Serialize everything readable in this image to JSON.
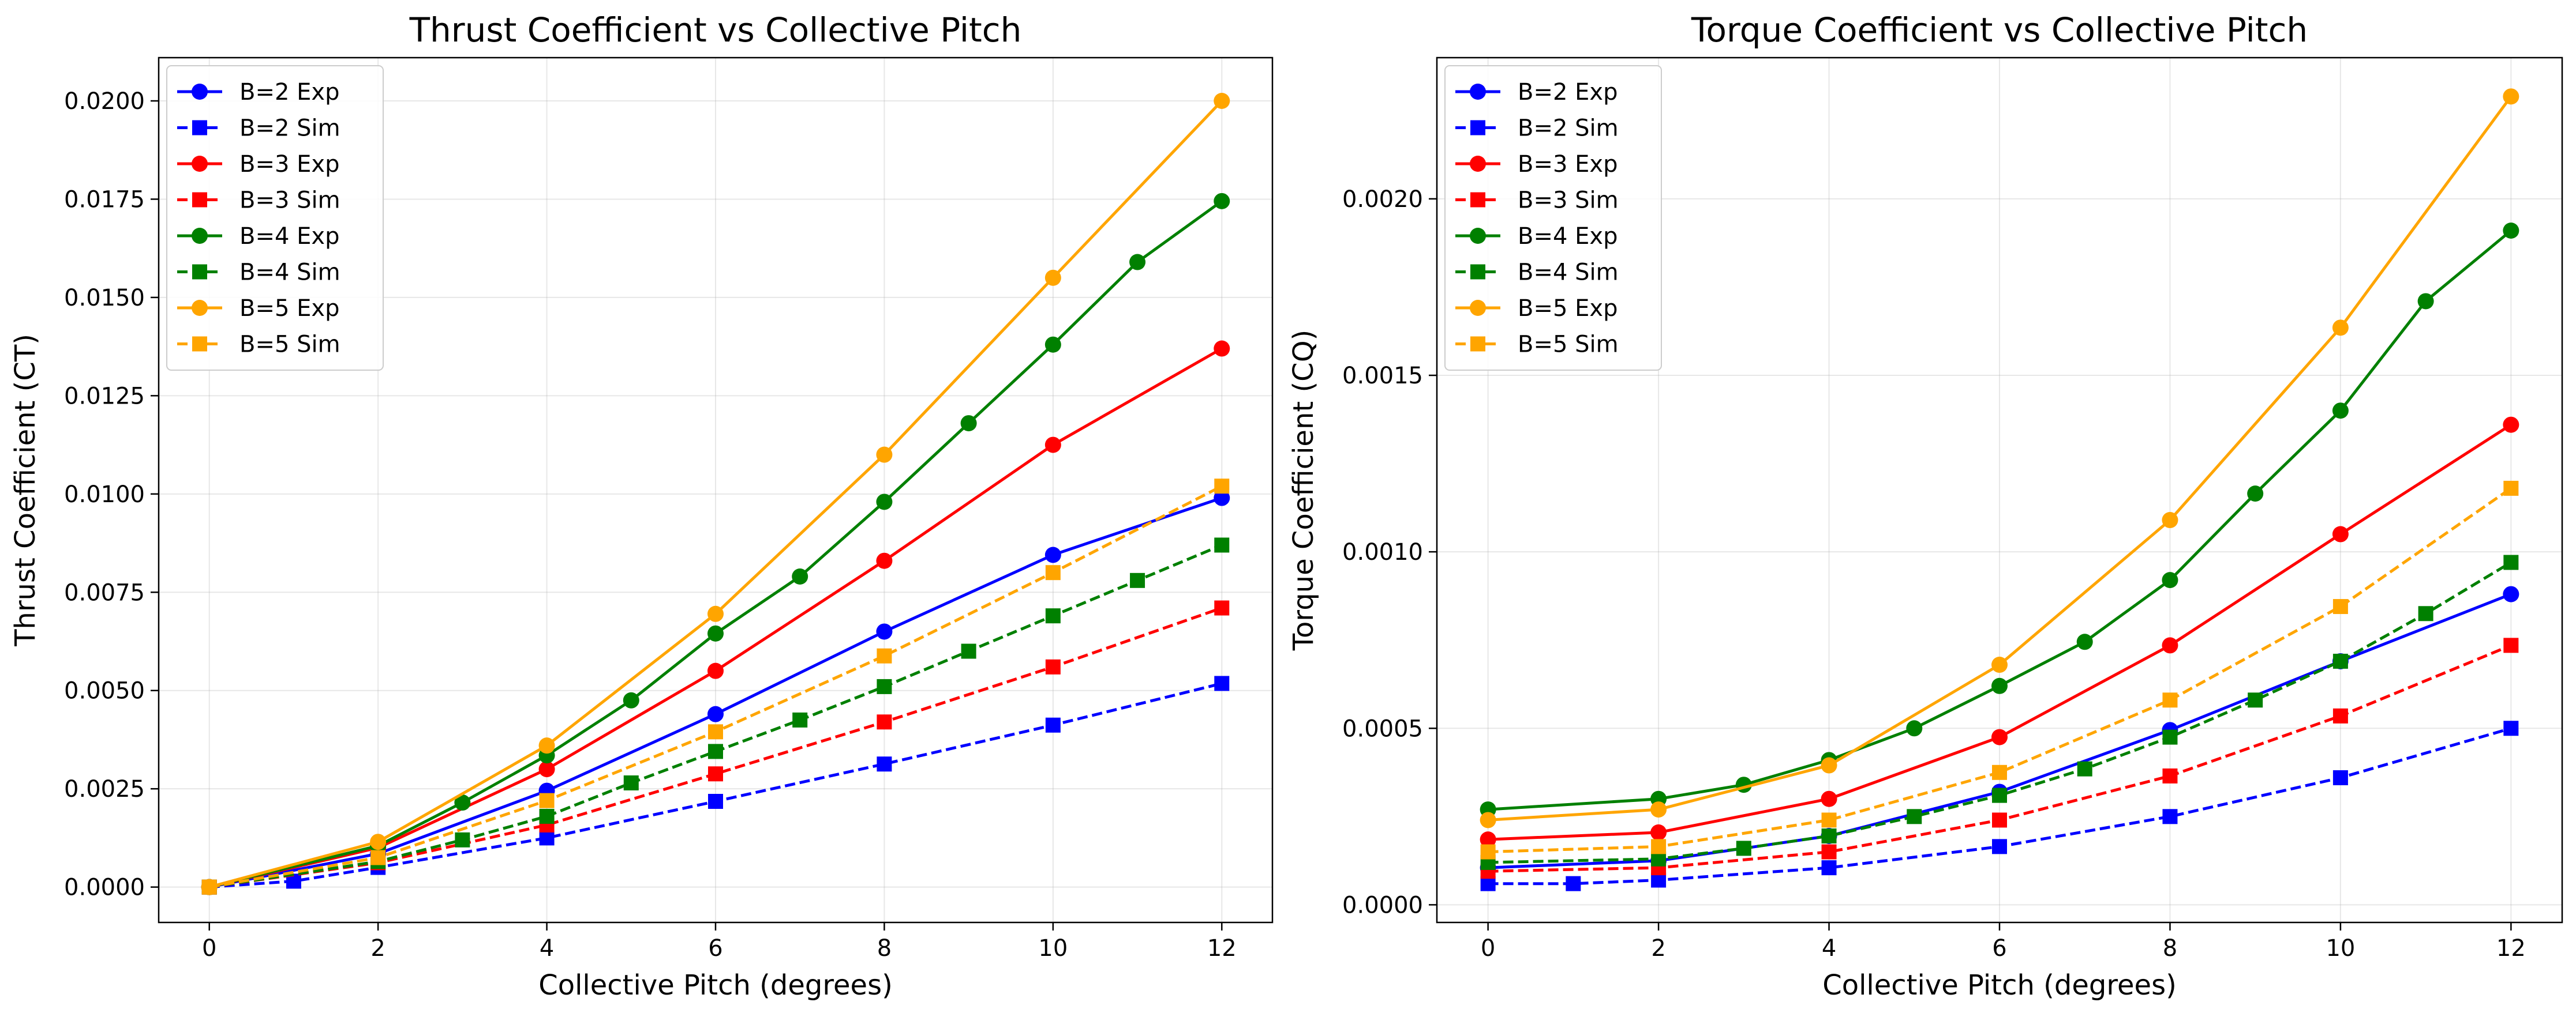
{
  "colors": {
    "B=2": "#0000ff",
    "B=3": "#ff0000",
    "B=4": "#008000",
    "B=5": "#ffa500"
  },
  "chart_data": [
    {
      "type": "line",
      "title": "Thrust Coefficient vs Collective Pitch",
      "xlabel": "Collective Pitch (degrees)",
      "ylabel": "Thrust Coefficient (CT)",
      "xlim": [
        -0.6,
        12.6
      ],
      "ylim": [
        -0.0009,
        0.0211
      ],
      "xticks": [
        0,
        2,
        4,
        6,
        8,
        10,
        12
      ],
      "xtick_labels": [
        "0",
        "2",
        "4",
        "6",
        "8",
        "10",
        "12"
      ],
      "yticks": [
        0,
        0.0025,
        0.005,
        0.0075,
        0.01,
        0.0125,
        0.015,
        0.0175,
        0.02
      ],
      "ytick_labels": [
        "0.0000",
        "0.0025",
        "0.0050",
        "0.0075",
        "0.0100",
        "0.0125",
        "0.0150",
        "0.0175",
        "0.0200"
      ],
      "grid": true,
      "legend_position": "upper-left",
      "series": [
        {
          "name": "B=2 Exp",
          "color": "#0000ff",
          "dashed": false,
          "marker": "circle",
          "x": [
            0,
            2,
            4,
            6,
            8,
            10,
            12
          ],
          "y": [
            0.0,
            0.00085,
            0.00245,
            0.0044,
            0.0065,
            0.00845,
            0.0099
          ]
        },
        {
          "name": "B=2 Sim",
          "color": "#0000ff",
          "dashed": true,
          "marker": "square",
          "x": [
            0,
            1,
            2,
            4,
            6,
            8,
            10,
            12
          ],
          "y": [
            0.0,
            0.00015,
            0.0005,
            0.00125,
            0.00218,
            0.00313,
            0.00412,
            0.00518
          ]
        },
        {
          "name": "B=3 Exp",
          "color": "#ff0000",
          "dashed": false,
          "marker": "circle",
          "x": [
            0,
            2,
            4,
            6,
            8,
            10,
            12
          ],
          "y": [
            0.0,
            0.001,
            0.003,
            0.0055,
            0.0083,
            0.01125,
            0.0137
          ]
        },
        {
          "name": "B=3 Sim",
          "color": "#ff0000",
          "dashed": true,
          "marker": "square",
          "x": [
            0,
            2,
            4,
            6,
            8,
            10,
            12
          ],
          "y": [
            0.0,
            0.00062,
            0.00158,
            0.00288,
            0.0042,
            0.0056,
            0.0071
          ]
        },
        {
          "name": "B=4 Exp",
          "color": "#008000",
          "dashed": false,
          "marker": "circle",
          "x": [
            0,
            2,
            3,
            4,
            5,
            6,
            7,
            8,
            9,
            10,
            11,
            12
          ],
          "y": [
            0.0,
            0.00105,
            0.00215,
            0.00335,
            0.00475,
            0.00645,
            0.0079,
            0.0098,
            0.0118,
            0.0138,
            0.0159,
            0.01745
          ]
        },
        {
          "name": "B=4 Sim",
          "color": "#008000",
          "dashed": true,
          "marker": "square",
          "x": [
            0,
            2,
            3,
            4,
            5,
            6,
            7,
            8,
            9,
            10,
            11,
            12
          ],
          "y": [
            0.0,
            0.00065,
            0.0012,
            0.0018,
            0.00265,
            0.00345,
            0.00425,
            0.0051,
            0.006,
            0.0069,
            0.0078,
            0.0087
          ]
        },
        {
          "name": "B=5 Exp",
          "color": "#ffa500",
          "dashed": false,
          "marker": "circle",
          "x": [
            0,
            2,
            4,
            6,
            8,
            10,
            12
          ],
          "y": [
            0.0,
            0.00115,
            0.0036,
            0.00695,
            0.011,
            0.0155,
            0.02
          ]
        },
        {
          "name": "B=5 Sim",
          "color": "#ffa500",
          "dashed": true,
          "marker": "square",
          "x": [
            0,
            2,
            4,
            6,
            8,
            10,
            12
          ],
          "y": [
            0.0,
            0.00075,
            0.0022,
            0.00395,
            0.00588,
            0.008,
            0.0102
          ]
        }
      ]
    },
    {
      "type": "line",
      "title": "Torque Coefficient vs Collective Pitch",
      "xlabel": "Collective Pitch (degrees)",
      "ylabel": "Torque Coefficient (CQ)",
      "xlim": [
        -0.6,
        12.6
      ],
      "ylim": [
        -5e-05,
        0.0024
      ],
      "xticks": [
        0,
        2,
        4,
        6,
        8,
        10,
        12
      ],
      "xtick_labels": [
        "0",
        "2",
        "4",
        "6",
        "8",
        "10",
        "12"
      ],
      "yticks": [
        0,
        0.0005,
        0.001,
        0.0015,
        0.002
      ],
      "ytick_labels": [
        "0.0000",
        "0.0005",
        "0.0010",
        "0.0015",
        "0.0020"
      ],
      "grid": true,
      "legend_position": "upper-left",
      "series": [
        {
          "name": "B=2 Exp",
          "color": "#0000ff",
          "dashed": false,
          "marker": "circle",
          "x": [
            0,
            2,
            4,
            6,
            8,
            10,
            12
          ],
          "y": [
            0.000105,
            0.000125,
            0.000195,
            0.00032,
            0.000495,
            0.00069,
            0.00088
          ]
        },
        {
          "name": "B=2 Sim",
          "color": "#0000ff",
          "dashed": true,
          "marker": "square",
          "x": [
            0,
            1,
            2,
            4,
            6,
            8,
            10,
            12
          ],
          "y": [
            6e-05,
            6e-05,
            7e-05,
            0.000105,
            0.000165,
            0.00025,
            0.00036,
            0.0005
          ]
        },
        {
          "name": "B=3 Exp",
          "color": "#ff0000",
          "dashed": false,
          "marker": "circle",
          "x": [
            0,
            2,
            4,
            6,
            8,
            10,
            12
          ],
          "y": [
            0.000185,
            0.000205,
            0.0003,
            0.000475,
            0.000735,
            0.00105,
            0.00136
          ]
        },
        {
          "name": "B=3 Sim",
          "color": "#ff0000",
          "dashed": true,
          "marker": "square",
          "x": [
            0,
            2,
            4,
            6,
            8,
            10,
            12
          ],
          "y": [
            9.5e-05,
            0.000105,
            0.00015,
            0.00024,
            0.000365,
            0.000535,
            0.000735
          ]
        },
        {
          "name": "B=4 Exp",
          "color": "#008000",
          "dashed": false,
          "marker": "circle",
          "x": [
            0,
            2,
            3,
            4,
            5,
            6,
            7,
            8,
            9,
            10,
            11,
            12
          ],
          "y": [
            0.00027,
            0.0003,
            0.00034,
            0.00041,
            0.0005,
            0.00062,
            0.000745,
            0.00092,
            0.001165,
            0.0014,
            0.00171,
            0.00191
          ]
        },
        {
          "name": "B=4 Sim",
          "color": "#008000",
          "dashed": true,
          "marker": "square",
          "x": [
            0,
            2,
            3,
            4,
            5,
            6,
            7,
            8,
            9,
            10,
            11,
            12
          ],
          "y": [
            0.00012,
            0.00013,
            0.00016,
            0.000195,
            0.00025,
            0.00031,
            0.000385,
            0.000475,
            0.00058,
            0.00069,
            0.000825,
            0.00097
          ]
        },
        {
          "name": "B=5 Exp",
          "color": "#ffa500",
          "dashed": false,
          "marker": "circle",
          "x": [
            0,
            2,
            4,
            6,
            8,
            10,
            12
          ],
          "y": [
            0.00024,
            0.00027,
            0.000395,
            0.00068,
            0.00109,
            0.001635,
            0.00229
          ]
        },
        {
          "name": "B=5 Sim",
          "color": "#ffa500",
          "dashed": true,
          "marker": "square",
          "x": [
            0,
            2,
            4,
            6,
            8,
            10,
            12
          ],
          "y": [
            0.00015,
            0.000165,
            0.00024,
            0.000375,
            0.00058,
            0.000845,
            0.00118
          ]
        }
      ]
    }
  ]
}
